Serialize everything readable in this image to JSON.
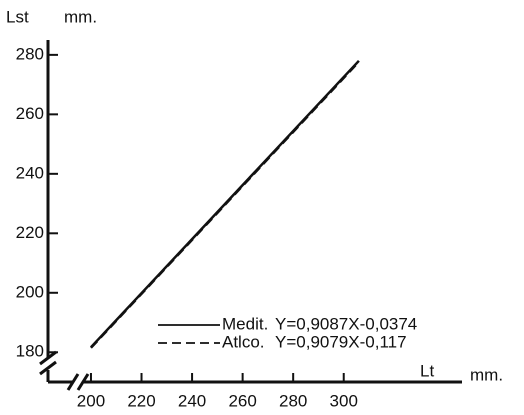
{
  "chart_data": {
    "type": "line",
    "y_label": "Lst",
    "y_unit": "mm.",
    "x_label": "Lt",
    "x_unit": "mm.",
    "x": [
      200,
      306
    ],
    "series": [
      {
        "name": "Medit.",
        "color": "#111111",
        "dash": "solid",
        "values": [
          181.7,
          278.0
        ],
        "equation": "Y=0,9087X-0,0374"
      },
      {
        "name": "Atlco.",
        "color": "#111111",
        "dash": "dashed",
        "values": [
          181.5,
          277.7
        ],
        "equation": "Y=0,9079X-0,117"
      }
    ],
    "xlim": [
      183,
      346
    ],
    "ylim": [
      170,
      285
    ],
    "xticks": [
      200,
      220,
      240,
      260,
      280,
      300
    ],
    "yticks": [
      180,
      200,
      220,
      240,
      260,
      280
    ]
  }
}
